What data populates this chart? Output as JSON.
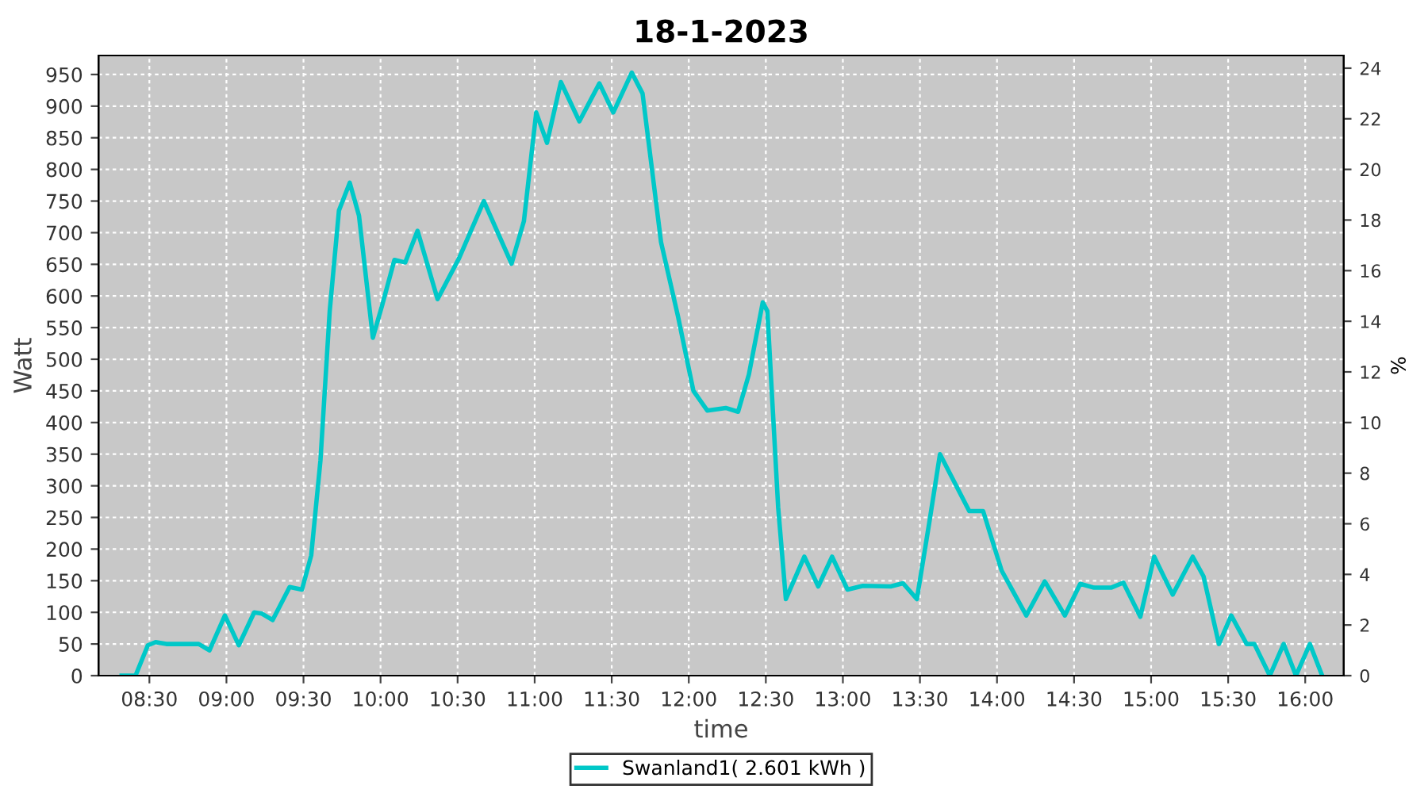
{
  "chart_data": {
    "type": "line",
    "title": "18-1-2023",
    "xlabel": "time",
    "ylabel": "Watt",
    "y2label": "%",
    "xlim": [
      8.17,
      16.25
    ],
    "xticks": [
      {
        "value": 8.5,
        "label": "08:30"
      },
      {
        "value": 9,
        "label": "09:00"
      },
      {
        "value": 9.5,
        "label": "09:30"
      },
      {
        "value": 10,
        "label": "10:00"
      },
      {
        "value": 10.5,
        "label": "10:30"
      },
      {
        "value": 11,
        "label": "11:00"
      },
      {
        "value": 11.5,
        "label": "11:30"
      },
      {
        "value": 12,
        "label": "12:00"
      },
      {
        "value": 12.5,
        "label": "12:30"
      },
      {
        "value": 13,
        "label": "13:00"
      },
      {
        "value": 13.5,
        "label": "13:30"
      },
      {
        "value": 14,
        "label": "14:00"
      },
      {
        "value": 14.5,
        "label": "14:30"
      },
      {
        "value": 15,
        "label": "15:00"
      },
      {
        "value": 15.5,
        "label": "15:30"
      },
      {
        "value": 16,
        "label": "16:00"
      }
    ],
    "ylim": [
      0,
      980
    ],
    "yticks": [
      0,
      50,
      100,
      150,
      200,
      250,
      300,
      350,
      400,
      450,
      500,
      550,
      600,
      650,
      700,
      750,
      800,
      850,
      900,
      950
    ],
    "y2lim": [
      0,
      24.5
    ],
    "y2ticks": [
      0,
      2,
      4,
      6,
      8,
      10,
      12,
      14,
      16,
      18,
      20,
      22,
      24
    ],
    "grid": true,
    "legend": "bottom",
    "marker": "none",
    "line_style": "solid",
    "series": [
      {
        "name": "Swanland1( 2.601 kWh )",
        "color": "#00c8c8",
        "x": [
          8.32,
          8.41,
          8.49,
          8.54,
          8.61,
          8.82,
          8.89,
          8.99,
          9.08,
          9.18,
          9.23,
          9.3,
          9.41,
          9.49,
          9.55,
          9.61,
          9.67,
          9.73,
          9.8,
          9.86,
          9.95,
          10.01,
          10.09,
          10.16,
          10.24,
          10.37,
          10.51,
          10.67,
          10.85,
          10.93,
          11.01,
          11.08,
          11.17,
          11.29,
          11.42,
          11.51,
          11.63,
          11.7,
          11.82,
          11.93,
          12.03,
          12.12,
          12.24,
          12.32,
          12.39,
          12.48,
          12.51,
          12.58,
          12.63,
          12.75,
          12.84,
          12.93,
          13.03,
          13.13,
          13.31,
          13.39,
          13.48,
          13.56,
          13.63,
          13.82,
          13.91,
          14.03,
          14.19,
          14.31,
          14.44,
          14.54,
          14.63,
          14.74,
          14.82,
          14.93,
          15.02,
          15.14,
          15.27,
          15.34,
          15.44,
          15.52,
          15.62,
          15.67,
          15.77,
          15.86,
          15.94,
          16.03,
          16.11
        ],
        "values": [
          0,
          0,
          48,
          53,
          50,
          50,
          40,
          95,
          48,
          100,
          98,
          88,
          140,
          136,
          190,
          340,
          576,
          735,
          779,
          727,
          534,
          585,
          657,
          653,
          703,
          595,
          660,
          750,
          651,
          718,
          890,
          842,
          938,
          876,
          936,
          890,
          953,
          920,
          685,
          568,
          450,
          419,
          423,
          417,
          476,
          590,
          576,
          266,
          121,
          188,
          141,
          188,
          136,
          142,
          141,
          146,
          121,
          241,
          350,
          260,
          260,
          166,
          95,
          149,
          95,
          145,
          139,
          139,
          147,
          93,
          188,
          128,
          188,
          157,
          50,
          95,
          50,
          50,
          0,
          50,
          0,
          50,
          0
        ]
      }
    ]
  }
}
